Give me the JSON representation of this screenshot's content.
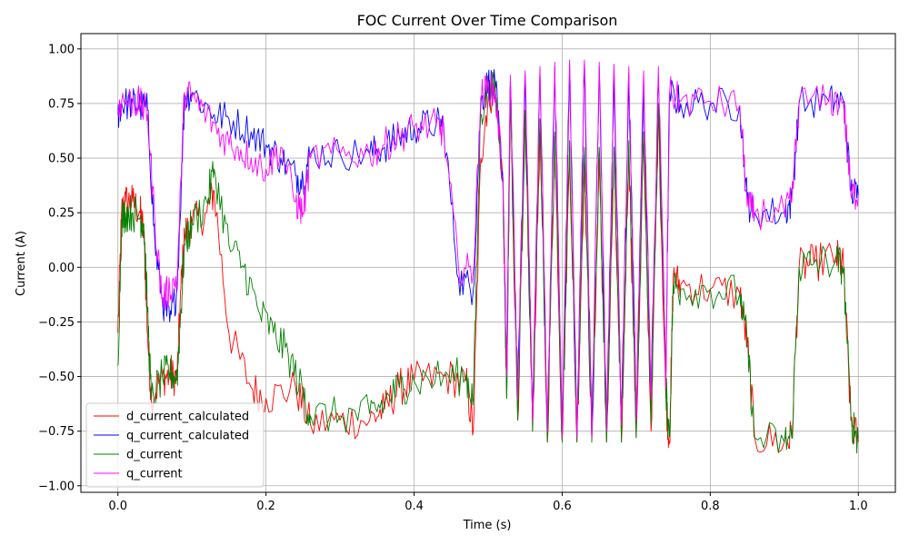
{
  "chart_data": {
    "type": "line",
    "title": "FOC Current Over Time Comparison",
    "xlabel": "Time (s)",
    "ylabel": "Current (A)",
    "xlim": [
      -0.05,
      1.05
    ],
    "ylim": [
      -1.03,
      1.07
    ],
    "xticks": [
      0.0,
      0.2,
      0.4,
      0.6,
      0.8,
      1.0
    ],
    "xtick_labels": [
      "0.0",
      "0.2",
      "0.4",
      "0.6",
      "0.8",
      "1.0"
    ],
    "yticks": [
      1.0,
      0.75,
      0.5,
      0.25,
      0.0,
      -0.25,
      -0.5,
      -0.75,
      -1.0
    ],
    "ytick_labels": [
      "1.00",
      "0.75",
      "0.50",
      "0.25",
      "0.00",
      "−0.25",
      "−0.50",
      "−0.75",
      "−1.00"
    ],
    "grid": true,
    "legend_position": "lower-left",
    "series": [
      {
        "name": "d_current_calculated",
        "color": "#ff0000",
        "points": [
          [
            0.0,
            -0.3
          ],
          [
            0.005,
            0.25
          ],
          [
            0.01,
            0.3
          ],
          [
            0.02,
            0.3
          ],
          [
            0.03,
            0.25
          ],
          [
            0.035,
            0.15
          ],
          [
            0.04,
            -0.3
          ],
          [
            0.045,
            -0.6
          ],
          [
            0.06,
            -0.5
          ],
          [
            0.07,
            -0.5
          ],
          [
            0.08,
            -0.5
          ],
          [
            0.085,
            -0.1
          ],
          [
            0.09,
            0.15
          ],
          [
            0.1,
            0.2
          ],
          [
            0.12,
            0.25
          ],
          [
            0.13,
            0.35
          ],
          [
            0.15,
            -0.3
          ],
          [
            0.18,
            -0.55
          ],
          [
            0.2,
            -0.6
          ],
          [
            0.24,
            -0.55
          ],
          [
            0.26,
            -0.72
          ],
          [
            0.3,
            -0.7
          ],
          [
            0.34,
            -0.7
          ],
          [
            0.36,
            -0.65
          ],
          [
            0.38,
            -0.55
          ],
          [
            0.4,
            -0.52
          ],
          [
            0.44,
            -0.5
          ],
          [
            0.47,
            -0.52
          ],
          [
            0.48,
            -0.75
          ],
          [
            0.49,
            0.5
          ],
          [
            0.5,
            0.78
          ],
          [
            0.51,
            0.8
          ],
          [
            0.52,
            0.4
          ],
          [
            0.525,
            -0.6
          ],
          [
            0.53,
            0.75
          ],
          [
            0.54,
            -0.7
          ],
          [
            0.55,
            0.7
          ],
          [
            0.56,
            -0.75
          ],
          [
            0.57,
            0.65
          ],
          [
            0.58,
            -0.8
          ],
          [
            0.59,
            0.6
          ],
          [
            0.6,
            -0.8
          ],
          [
            0.61,
            0.55
          ],
          [
            0.62,
            -0.8
          ],
          [
            0.63,
            0.5
          ],
          [
            0.64,
            -0.8
          ],
          [
            0.65,
            0.5
          ],
          [
            0.66,
            -0.8
          ],
          [
            0.67,
            0.5
          ],
          [
            0.68,
            -0.8
          ],
          [
            0.69,
            0.55
          ],
          [
            0.7,
            -0.78
          ],
          [
            0.71,
            0.6
          ],
          [
            0.72,
            -0.75
          ],
          [
            0.73,
            0.7
          ],
          [
            0.74,
            -0.6
          ],
          [
            0.745,
            -0.8
          ],
          [
            0.75,
            -0.05
          ],
          [
            0.76,
            -0.08
          ],
          [
            0.8,
            -0.1
          ],
          [
            0.84,
            -0.12
          ],
          [
            0.85,
            -0.35
          ],
          [
            0.86,
            -0.78
          ],
          [
            0.9,
            -0.8
          ],
          [
            0.91,
            -0.78
          ],
          [
            0.92,
            0.0
          ],
          [
            0.94,
            0.02
          ],
          [
            0.97,
            0.05
          ],
          [
            0.98,
            0.0
          ],
          [
            0.99,
            -0.7
          ],
          [
            1.0,
            -0.8
          ]
        ]
      },
      {
        "name": "q_current_calculated",
        "color": "#0000ff",
        "points": [
          [
            0.0,
            0.7
          ],
          [
            0.005,
            0.75
          ],
          [
            0.02,
            0.75
          ],
          [
            0.03,
            0.74
          ],
          [
            0.04,
            0.72
          ],
          [
            0.05,
            0.1
          ],
          [
            0.06,
            -0.15
          ],
          [
            0.07,
            -0.25
          ],
          [
            0.08,
            -0.1
          ],
          [
            0.09,
            0.78
          ],
          [
            0.1,
            0.8
          ],
          [
            0.13,
            0.7
          ],
          [
            0.15,
            0.68
          ],
          [
            0.18,
            0.62
          ],
          [
            0.2,
            0.56
          ],
          [
            0.22,
            0.5
          ],
          [
            0.24,
            0.42
          ],
          [
            0.25,
            0.4
          ],
          [
            0.26,
            0.52
          ],
          [
            0.3,
            0.52
          ],
          [
            0.34,
            0.52
          ],
          [
            0.36,
            0.55
          ],
          [
            0.38,
            0.6
          ],
          [
            0.4,
            0.64
          ],
          [
            0.43,
            0.66
          ],
          [
            0.44,
            0.65
          ],
          [
            0.46,
            -0.05
          ],
          [
            0.48,
            -0.1
          ],
          [
            0.49,
            0.75
          ],
          [
            0.5,
            0.85
          ],
          [
            0.51,
            0.82
          ],
          [
            0.52,
            0.4
          ],
          [
            0.525,
            -0.5
          ],
          [
            0.53,
            0.85
          ],
          [
            0.54,
            -0.6
          ],
          [
            0.55,
            0.88
          ],
          [
            0.56,
            -0.7
          ],
          [
            0.57,
            0.9
          ],
          [
            0.58,
            -0.75
          ],
          [
            0.59,
            0.92
          ],
          [
            0.6,
            -0.78
          ],
          [
            0.61,
            0.93
          ],
          [
            0.62,
            -0.78
          ],
          [
            0.63,
            0.93
          ],
          [
            0.64,
            -0.78
          ],
          [
            0.65,
            0.92
          ],
          [
            0.66,
            -0.75
          ],
          [
            0.67,
            0.9
          ],
          [
            0.68,
            -0.72
          ],
          [
            0.69,
            0.88
          ],
          [
            0.7,
            -0.7
          ],
          [
            0.71,
            0.86
          ],
          [
            0.72,
            -0.6
          ],
          [
            0.73,
            0.86
          ],
          [
            0.74,
            -0.5
          ],
          [
            0.745,
            0.8
          ],
          [
            0.76,
            0.75
          ],
          [
            0.8,
            0.75
          ],
          [
            0.84,
            0.74
          ],
          [
            0.85,
            0.3
          ],
          [
            0.86,
            0.25
          ],
          [
            0.9,
            0.25
          ],
          [
            0.91,
            0.3
          ],
          [
            0.92,
            0.75
          ],
          [
            0.96,
            0.76
          ],
          [
            0.98,
            0.76
          ],
          [
            0.99,
            0.35
          ],
          [
            1.0,
            0.33
          ]
        ]
      },
      {
        "name": "d_current",
        "color": "#008000",
        "points": [
          [
            0.0,
            -0.45
          ],
          [
            0.005,
            0.22
          ],
          [
            0.01,
            0.25
          ],
          [
            0.02,
            0.25
          ],
          [
            0.03,
            0.23
          ],
          [
            0.035,
            0.2
          ],
          [
            0.04,
            -0.2
          ],
          [
            0.045,
            -0.6
          ],
          [
            0.06,
            -0.5
          ],
          [
            0.07,
            -0.48
          ],
          [
            0.08,
            -0.5
          ],
          [
            0.085,
            -0.2
          ],
          [
            0.09,
            0.1
          ],
          [
            0.1,
            0.2
          ],
          [
            0.12,
            0.3
          ],
          [
            0.13,
            0.45
          ],
          [
            0.15,
            0.1
          ],
          [
            0.17,
            0.0
          ],
          [
            0.19,
            -0.2
          ],
          [
            0.21,
            -0.3
          ],
          [
            0.23,
            -0.4
          ],
          [
            0.25,
            -0.58
          ],
          [
            0.26,
            -0.68
          ],
          [
            0.3,
            -0.68
          ],
          [
            0.34,
            -0.67
          ],
          [
            0.36,
            -0.62
          ],
          [
            0.38,
            -0.55
          ],
          [
            0.4,
            -0.52
          ],
          [
            0.44,
            -0.5
          ],
          [
            0.47,
            -0.5
          ],
          [
            0.48,
            -0.6
          ],
          [
            0.49,
            0.7
          ],
          [
            0.5,
            0.82
          ],
          [
            0.51,
            0.8
          ],
          [
            0.52,
            0.4
          ],
          [
            0.525,
            -0.6
          ],
          [
            0.53,
            0.78
          ],
          [
            0.54,
            -0.7
          ],
          [
            0.55,
            0.72
          ],
          [
            0.56,
            -0.75
          ],
          [
            0.57,
            0.68
          ],
          [
            0.58,
            -0.8
          ],
          [
            0.59,
            0.62
          ],
          [
            0.6,
            -0.8
          ],
          [
            0.61,
            0.58
          ],
          [
            0.62,
            -0.8
          ],
          [
            0.63,
            0.55
          ],
          [
            0.64,
            -0.8
          ],
          [
            0.65,
            0.55
          ],
          [
            0.66,
            -0.8
          ],
          [
            0.67,
            0.55
          ],
          [
            0.68,
            -0.8
          ],
          [
            0.69,
            0.58
          ],
          [
            0.7,
            -0.78
          ],
          [
            0.71,
            0.62
          ],
          [
            0.72,
            -0.72
          ],
          [
            0.73,
            0.75
          ],
          [
            0.74,
            -0.55
          ],
          [
            0.745,
            -0.78
          ],
          [
            0.75,
            -0.08
          ],
          [
            0.76,
            -0.1
          ],
          [
            0.8,
            -0.1
          ],
          [
            0.84,
            -0.12
          ],
          [
            0.85,
            -0.35
          ],
          [
            0.86,
            -0.78
          ],
          [
            0.9,
            -0.8
          ],
          [
            0.91,
            -0.78
          ],
          [
            0.92,
            0.0
          ],
          [
            0.94,
            0.02
          ],
          [
            0.97,
            0.03
          ],
          [
            0.98,
            0.0
          ],
          [
            0.99,
            -0.7
          ],
          [
            1.0,
            -0.78
          ]
        ]
      },
      {
        "name": "q_current",
        "color": "#ff00ff",
        "points": [
          [
            0.0,
            0.72
          ],
          [
            0.005,
            0.76
          ],
          [
            0.02,
            0.76
          ],
          [
            0.03,
            0.75
          ],
          [
            0.04,
            0.7
          ],
          [
            0.05,
            0.2
          ],
          [
            0.06,
            -0.15
          ],
          [
            0.07,
            -0.1
          ],
          [
            0.08,
            -0.05
          ],
          [
            0.09,
            0.8
          ],
          [
            0.1,
            0.78
          ],
          [
            0.12,
            0.7
          ],
          [
            0.14,
            0.6
          ],
          [
            0.16,
            0.55
          ],
          [
            0.18,
            0.5
          ],
          [
            0.2,
            0.45
          ],
          [
            0.22,
            0.55
          ],
          [
            0.24,
            0.3
          ],
          [
            0.25,
            0.25
          ],
          [
            0.26,
            0.5
          ],
          [
            0.3,
            0.52
          ],
          [
            0.34,
            0.52
          ],
          [
            0.36,
            0.56
          ],
          [
            0.38,
            0.6
          ],
          [
            0.4,
            0.64
          ],
          [
            0.43,
            0.65
          ],
          [
            0.44,
            0.62
          ],
          [
            0.46,
            0.0
          ],
          [
            0.48,
            -0.02
          ],
          [
            0.49,
            0.78
          ],
          [
            0.5,
            0.82
          ],
          [
            0.51,
            0.8
          ],
          [
            0.52,
            0.4
          ],
          [
            0.525,
            -0.5
          ],
          [
            0.53,
            0.88
          ],
          [
            0.54,
            -0.6
          ],
          [
            0.55,
            0.9
          ],
          [
            0.56,
            -0.7
          ],
          [
            0.57,
            0.92
          ],
          [
            0.58,
            -0.75
          ],
          [
            0.59,
            0.94
          ],
          [
            0.6,
            -0.78
          ],
          [
            0.61,
            0.95
          ],
          [
            0.62,
            -0.78
          ],
          [
            0.63,
            0.95
          ],
          [
            0.64,
            -0.78
          ],
          [
            0.65,
            0.94
          ],
          [
            0.66,
            -0.75
          ],
          [
            0.67,
            0.93
          ],
          [
            0.68,
            -0.72
          ],
          [
            0.69,
            0.92
          ],
          [
            0.7,
            -0.7
          ],
          [
            0.71,
            0.9
          ],
          [
            0.72,
            -0.6
          ],
          [
            0.73,
            0.92
          ],
          [
            0.74,
            -0.55
          ],
          [
            0.745,
            0.8
          ],
          [
            0.76,
            0.76
          ],
          [
            0.8,
            0.76
          ],
          [
            0.84,
            0.74
          ],
          [
            0.85,
            0.28
          ],
          [
            0.86,
            0.25
          ],
          [
            0.9,
            0.25
          ],
          [
            0.91,
            0.3
          ],
          [
            0.92,
            0.76
          ],
          [
            0.96,
            0.76
          ],
          [
            0.98,
            0.76
          ],
          [
            0.99,
            0.33
          ],
          [
            1.0,
            0.34
          ]
        ]
      }
    ]
  }
}
